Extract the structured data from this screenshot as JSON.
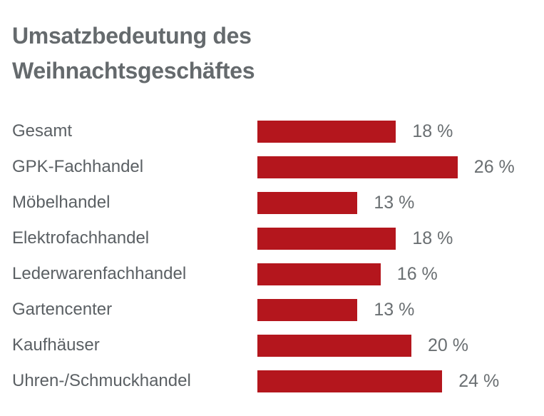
{
  "chart_data": {
    "type": "bar",
    "orientation": "horizontal",
    "title_lines": [
      "Umsatzbedeutung des",
      "Weihnachtsgeschäftes"
    ],
    "categories": [
      "Gesamt",
      "GPK-Fachhandel",
      "Möbelhandel",
      "Elektrofachhandel",
      "Lederwarenfachhandel",
      "Gartencenter",
      "Kaufhäuser",
      "Uhren-/Schmuckhandel"
    ],
    "values": [
      18,
      26,
      13,
      18,
      16,
      13,
      20,
      24
    ],
    "value_labels": [
      "18 %",
      "26 %",
      "13 %",
      "18 %",
      "16 %",
      "13 %",
      "20 %",
      "24 %"
    ],
    "unit": "%",
    "xlim": [
      0,
      26
    ],
    "grid": false,
    "colors": {
      "bar": "#b4161d",
      "title": "#656a6d",
      "text": "#5b6064"
    }
  }
}
